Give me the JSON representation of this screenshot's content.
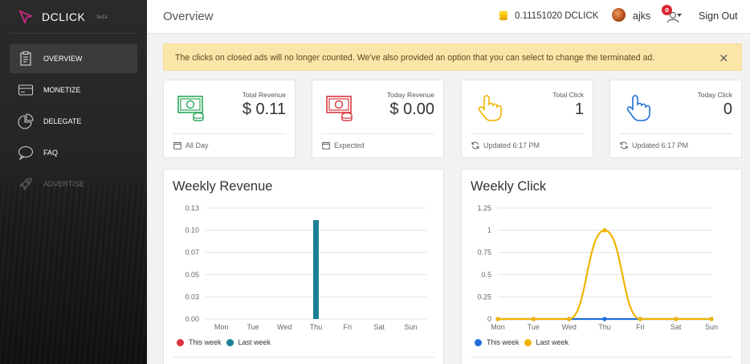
{
  "brand": {
    "name": "DCLICK",
    "tag": "beta"
  },
  "sidebar": {
    "items": [
      {
        "label": "OVERVIEW",
        "icon": "clipboard-icon",
        "active": true
      },
      {
        "label": "MONETIZE",
        "icon": "card-icon"
      },
      {
        "label": "DELEGATE",
        "icon": "pie-chart-icon"
      },
      {
        "label": "FAQ",
        "icon": "chat-bubble-icon"
      },
      {
        "label": "ADVERTISE",
        "icon": "rocket-icon",
        "dim": true
      }
    ]
  },
  "header": {
    "title": "Overview",
    "balance": "0.11151020 DCLICK",
    "username": "ajks",
    "notification_count": "0",
    "signout": "Sign Out"
  },
  "alert": {
    "text": "The clicks on closed ads will no longer counted. We've also provided an option that you can select to change the terminated ad.",
    "close": "×"
  },
  "stats": [
    {
      "label": "Total Revenue",
      "value": "$ 0.11",
      "footer": "All Day",
      "icon": "money-coins-icon",
      "color": "#2aa85a",
      "footer_icon": "calendar-icon"
    },
    {
      "label": "Today Revenue",
      "value": "$ 0.00",
      "footer": "Expected",
      "icon": "money-coins-icon",
      "color": "#d9363e",
      "footer_icon": "calendar-icon"
    },
    {
      "label": "Total Click",
      "value": "1",
      "footer": "Updated 6:17 PM",
      "icon": "pointer-hand-icon",
      "color": "#f0b400",
      "footer_icon": "refresh-icon"
    },
    {
      "label": "Today Click",
      "value": "0",
      "footer": "Updated 6:17 PM",
      "icon": "pointer-hand-icon",
      "color": "#1e6fd9",
      "footer_icon": "refresh-icon"
    }
  ],
  "chart_data": [
    {
      "type": "bar",
      "title": "Weekly Revenue",
      "categories": [
        "Mon",
        "Tue",
        "Wed",
        "Thu",
        "Fri",
        "Sat",
        "Sun"
      ],
      "yticks": [
        "0.00",
        "0.03",
        "0.05",
        "0.07",
        "0.10",
        "0.13"
      ],
      "ylim": [
        0,
        0.125
      ],
      "series": [
        {
          "name": "This week",
          "color": "#d9363e",
          "values": [
            0,
            0,
            0,
            0,
            0,
            0,
            0
          ]
        },
        {
          "name": "Last week",
          "color": "#1a7f96",
          "values": [
            0,
            0,
            0,
            0.1115,
            0,
            0,
            0
          ]
        }
      ],
      "legend": "bottom-left"
    },
    {
      "type": "line",
      "title": "Weekly Click",
      "categories": [
        "Mon",
        "Tue",
        "Wed",
        "Thu",
        "Fri",
        "Sat",
        "Sun"
      ],
      "yticks": [
        "0",
        "0.25",
        "0.5",
        "0.75",
        "1",
        "1.25"
      ],
      "ylim": [
        0,
        1.25
      ],
      "series": [
        {
          "name": "This week",
          "color": "#1e6fd9",
          "values": [
            0,
            0,
            0,
            0,
            0,
            0,
            0
          ]
        },
        {
          "name": "Last week",
          "color": "#f0b400",
          "values": [
            0,
            0,
            0,
            1,
            0,
            0,
            0
          ]
        }
      ],
      "legend": "bottom-left"
    }
  ]
}
